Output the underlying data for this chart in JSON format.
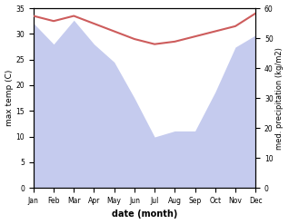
{
  "months": [
    "Jan",
    "Feb",
    "Mar",
    "Apr",
    "May",
    "Jun",
    "Jul",
    "Aug",
    "Sep",
    "Oct",
    "Nov",
    "Dec"
  ],
  "temp": [
    33.5,
    32.5,
    33.5,
    32.0,
    30.5,
    29.0,
    28.0,
    28.5,
    29.5,
    30.5,
    31.5,
    34.0
  ],
  "precip": [
    55,
    48,
    56,
    48,
    42,
    30,
    17,
    19,
    19,
    32,
    47,
    51
  ],
  "temp_color": "#cd5c5c",
  "precip_fill": "#c5cbee",
  "ylabel_left": "max temp (C)",
  "ylabel_right": "med. precipitation (kg/m2)",
  "xlabel": "date (month)",
  "ylim_left": [
    0,
    35
  ],
  "ylim_right": [
    0,
    60
  ],
  "yticks_left": [
    0,
    5,
    10,
    15,
    20,
    25,
    30,
    35
  ],
  "yticks_right": [
    0,
    10,
    20,
    30,
    40,
    50,
    60
  ],
  "bg_color": "#ffffff"
}
